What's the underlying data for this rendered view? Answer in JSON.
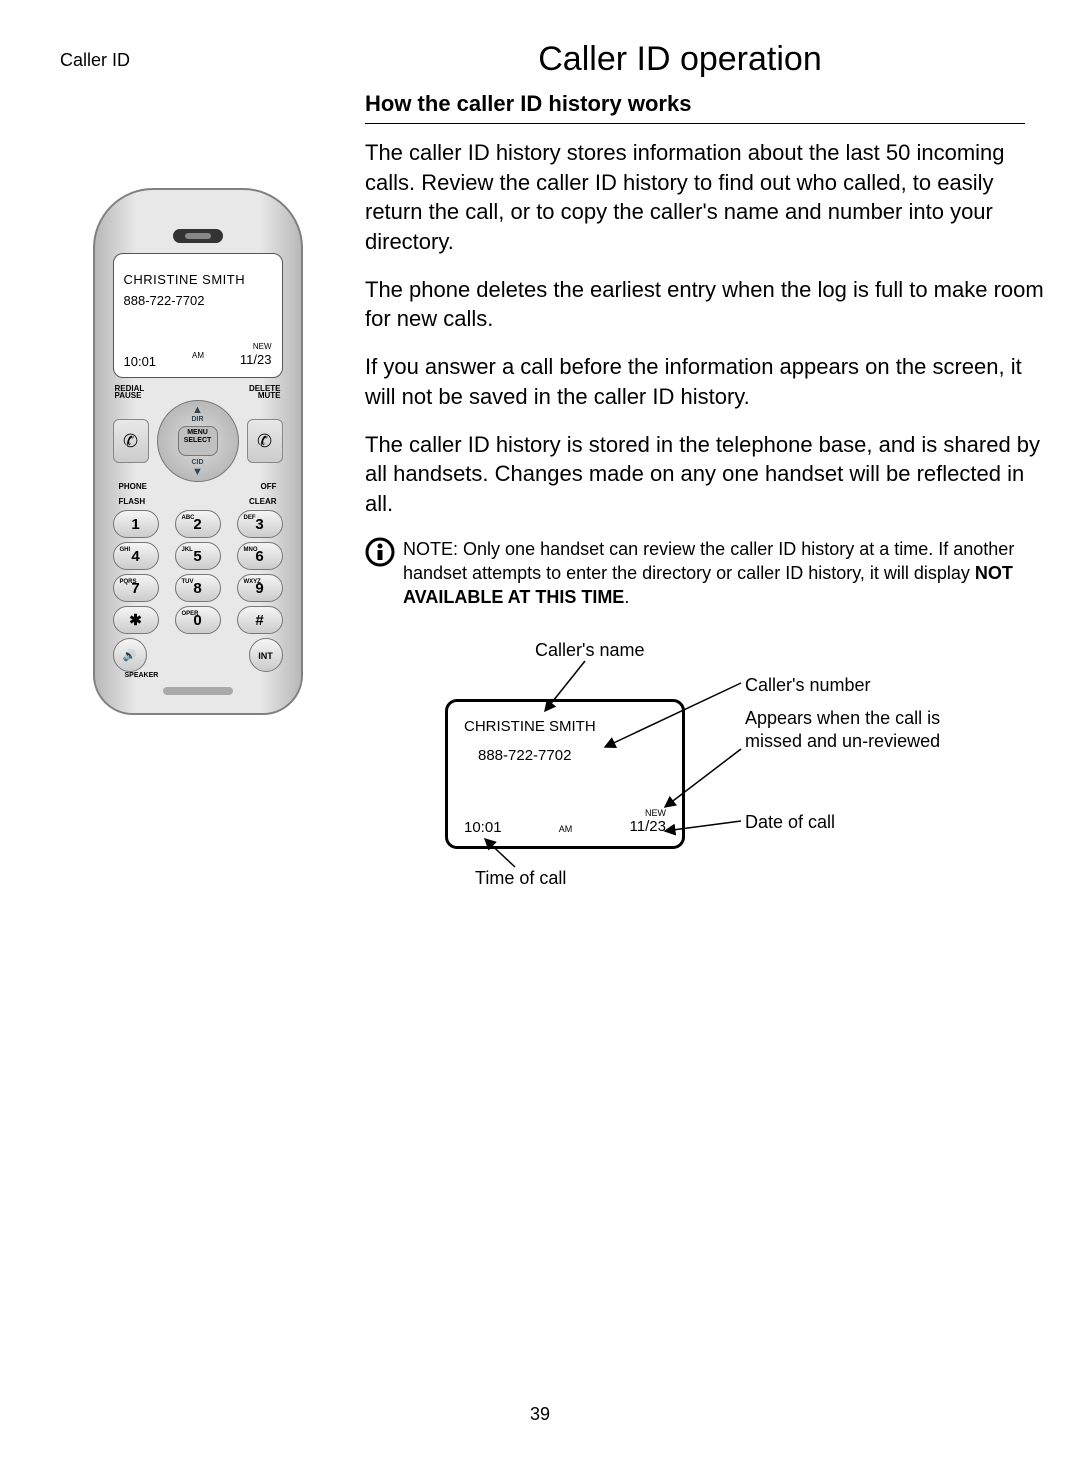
{
  "header": {
    "section_label": "Caller ID"
  },
  "title": "Caller ID operation",
  "subtitle": "How the caller ID history works",
  "paragraphs": [
    "The caller ID history stores information about the last 50 incoming calls. Review the caller ID history to find out who called, to easily return the call, or to copy the caller's name and number into your directory.",
    "The phone deletes the earliest entry when the log is full to make room for new calls.",
    "If you answer a call before the information appears on the screen, it will not be saved in the caller ID history.",
    "The caller ID history is stored in the telephone base, and is shared by all handsets. Changes made on any one handset will be reflected in all."
  ],
  "note": {
    "lead": "NOTE:",
    "text": "Only one handset can review the caller ID history at a time. If another handset attempts to enter the directory or caller ID history, it will display ",
    "bold_tail": "NOT AVAILABLE AT THIS TIME"
  },
  "caller_entry": {
    "name": "CHRISTINE SMITH",
    "number": "888-722-7702",
    "time": "10:01",
    "ampm": "AM",
    "new_flag": "NEW",
    "date": "11/23"
  },
  "handset": {
    "nav": {
      "top_left": "REDIAL",
      "top_left2": "PAUSE",
      "top_right": "DELETE",
      "top_right2": "MUTE",
      "bottom_left": "PHONE",
      "bottom_right": "OFF",
      "dir": "DIR",
      "cid": "CID",
      "menu": "MENU",
      "select": "SELECT"
    },
    "keypad_labels": {
      "flash": "FLASH",
      "clear": "CLEAR"
    },
    "keys": [
      [
        {
          "sub": "",
          "main": "1"
        },
        {
          "sub": "ABC",
          "main": "2"
        },
        {
          "sub": "DEF",
          "main": "3"
        }
      ],
      [
        {
          "sub": "GHI",
          "main": "4"
        },
        {
          "sub": "JKL",
          "main": "5"
        },
        {
          "sub": "MNO",
          "main": "6"
        }
      ],
      [
        {
          "sub": "PQRS",
          "main": "7"
        },
        {
          "sub": "TUV",
          "main": "8"
        },
        {
          "sub": "WXYZ",
          "main": "9"
        }
      ],
      [
        {
          "sub": "",
          "main": "✱"
        },
        {
          "sub": "OPER",
          "main": "0"
        },
        {
          "sub": "",
          "main": "#"
        }
      ]
    ],
    "speaker": "SPEAKER",
    "int": "INT"
  },
  "diagram": {
    "labels": {
      "caller_name": "Caller's name",
      "caller_number": "Caller's number",
      "new_text": "Appears when the call is missed and un-reviewed",
      "date": "Date of call",
      "time": "Time of call"
    }
  },
  "page_number": "39",
  "colors": {
    "text": "#000000",
    "bg": "#ffffff",
    "handset_grey": "#cfcfcf",
    "border": "#000000"
  }
}
